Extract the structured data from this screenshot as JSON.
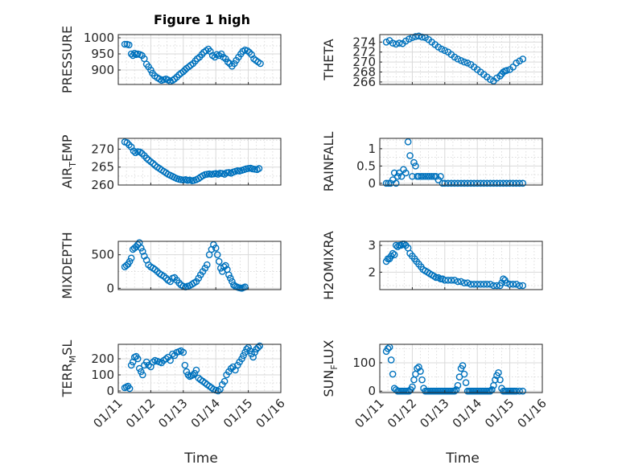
{
  "figure_title": "Figure 1 high",
  "chart_data": [
    {
      "type": "scatter",
      "id": "pressure",
      "ylabel": "PRESSURE",
      "xlim": [
        0,
        5
      ],
      "ylim": [
        855,
        1010
      ],
      "yticks": [
        900,
        950,
        1000
      ],
      "xticklabels": [],
      "title": "Figure 1 high",
      "x": [
        0.2,
        0.27,
        0.33,
        0.4,
        0.45,
        0.5,
        0.55,
        0.6,
        0.67,
        0.73,
        0.8,
        0.87,
        0.93,
        1.0,
        1.05,
        1.12,
        1.2,
        1.27,
        1.33,
        1.4,
        1.47,
        1.53,
        1.6,
        1.67,
        1.73,
        1.8,
        1.87,
        1.93,
        2.0,
        2.05,
        2.1,
        2.17,
        2.23,
        2.3,
        2.37,
        2.43,
        2.5,
        2.57,
        2.63,
        2.7,
        2.77,
        2.83,
        2.9,
        2.97,
        3.03,
        3.1,
        3.17,
        3.23,
        3.3,
        3.37,
        3.43,
        3.5,
        3.57,
        3.63,
        3.7,
        3.77,
        3.83,
        3.9,
        3.97,
        4.03,
        4.1,
        4.17,
        4.23,
        4.3,
        4.37
      ],
      "y": [
        980,
        980,
        978,
        950,
        945,
        952,
        948,
        950,
        948,
        945,
        935,
        918,
        910,
        900,
        890,
        882,
        876,
        872,
        868,
        870,
        872,
        869,
        865,
        868,
        872,
        878,
        885,
        890,
        895,
        900,
        905,
        910,
        915,
        920,
        928,
        935,
        940,
        948,
        955,
        960,
        965,
        958,
        945,
        940,
        948,
        945,
        950,
        940,
        935,
        925,
        920,
        912,
        920,
        930,
        940,
        950,
        958,
        962,
        960,
        955,
        948,
        935,
        930,
        925,
        920
      ]
    },
    {
      "type": "scatter",
      "id": "theta",
      "ylabel": "THETA",
      "xlim": [
        0,
        5
      ],
      "ylim": [
        265.5,
        275.5
      ],
      "yticks": [
        266,
        268,
        270,
        272,
        274
      ],
      "xticklabels": [],
      "x": [
        0.2,
        0.3,
        0.4,
        0.5,
        0.6,
        0.7,
        0.8,
        0.9,
        1.0,
        1.1,
        1.2,
        1.3,
        1.4,
        1.5,
        1.6,
        1.7,
        1.8,
        1.9,
        2.0,
        2.1,
        2.2,
        2.3,
        2.4,
        2.5,
        2.6,
        2.7,
        2.8,
        2.9,
        3.0,
        3.1,
        3.2,
        3.3,
        3.4,
        3.5,
        3.6,
        3.7,
        3.75,
        3.8,
        3.85,
        3.9,
        4.0,
        4.1,
        4.2,
        4.3,
        4.4
      ],
      "y": [
        274,
        274.3,
        273.8,
        273.6,
        273.8,
        273.7,
        274.2,
        274.6,
        274.9,
        275.1,
        275.2,
        275.0,
        274.9,
        274.5,
        274.0,
        273.5,
        273.0,
        272.6,
        272.3,
        272.0,
        271.5,
        271.0,
        270.6,
        270.3,
        270.0,
        269.8,
        269.5,
        269.0,
        268.5,
        268.0,
        267.5,
        267.0,
        266.5,
        266.2,
        266.8,
        267.2,
        267.6,
        268.0,
        268.2,
        268.3,
        268.5,
        269.0,
        269.8,
        270.2,
        270.6
      ]
    },
    {
      "type": "scatter",
      "id": "airtemp",
      "ylabel": "AIR_TEMP",
      "xlim": [
        0,
        5
      ],
      "ylim": [
        260,
        273
      ],
      "yticks": [
        260,
        265,
        270
      ],
      "xticklabels": [],
      "x": [
        0.2,
        0.27,
        0.33,
        0.4,
        0.47,
        0.53,
        0.6,
        0.67,
        0.73,
        0.8,
        0.87,
        0.93,
        1.0,
        1.07,
        1.13,
        1.2,
        1.27,
        1.33,
        1.4,
        1.47,
        1.53,
        1.6,
        1.67,
        1.73,
        1.8,
        1.87,
        1.93,
        2.0,
        2.07,
        2.13,
        2.2,
        2.27,
        2.33,
        2.4,
        2.47,
        2.53,
        2.6,
        2.67,
        2.73,
        2.8,
        2.87,
        2.93,
        3.0,
        3.07,
        3.13,
        3.2,
        3.27,
        3.33,
        3.4,
        3.47,
        3.53,
        3.6,
        3.67,
        3.73,
        3.8,
        3.87,
        3.93,
        4.0,
        4.07,
        4.13,
        4.2,
        4.27,
        4.33
      ],
      "y": [
        272,
        271.8,
        271.2,
        270.6,
        269.5,
        269.0,
        269.3,
        269.2,
        268.8,
        268.2,
        267.5,
        267.0,
        266.5,
        266.0,
        265.5,
        265.0,
        264.6,
        264.2,
        263.8,
        263.4,
        263.0,
        262.7,
        262.4,
        262.1,
        261.8,
        261.6,
        261.5,
        261.4,
        261.5,
        261.3,
        261.4,
        261.2,
        261.3,
        261.5,
        261.8,
        262.2,
        262.6,
        262.9,
        263.0,
        263.1,
        263.0,
        263.1,
        263.2,
        263.0,
        263.3,
        263.2,
        263.0,
        263.4,
        263.5,
        263.3,
        263.6,
        263.8,
        264.0,
        263.9,
        264.1,
        264.3,
        264.5,
        264.6,
        264.7,
        264.5,
        264.4,
        264.3,
        264.6
      ]
    },
    {
      "type": "scatter",
      "id": "rainfall",
      "ylabel": "RAINFALL",
      "xlim": [
        0,
        5
      ],
      "ylim": [
        -0.05,
        1.3
      ],
      "yticks": [
        0,
        0.5,
        1
      ],
      "xticklabels": [],
      "x": [
        0.2,
        0.27,
        0.33,
        0.4,
        0.45,
        0.5,
        0.55,
        0.6,
        0.67,
        0.73,
        0.8,
        0.87,
        0.93,
        1.0,
        1.05,
        1.1,
        1.15,
        1.2,
        1.27,
        1.33,
        1.4,
        1.47,
        1.53,
        1.6,
        1.67,
        1.73,
        1.8,
        1.87,
        1.93,
        2.0,
        2.1,
        2.2,
        2.3,
        2.4,
        2.5,
        2.6,
        2.7,
        2.8,
        2.9,
        3.0,
        3.1,
        3.2,
        3.3,
        3.4,
        3.5,
        3.6,
        3.7,
        3.8,
        3.9,
        4.0,
        4.1,
        4.2,
        4.3,
        4.4
      ],
      "y": [
        0,
        0,
        0,
        0.1,
        0.3,
        0,
        0.2,
        0.3,
        0.2,
        0.4,
        0.3,
        1.2,
        0.8,
        0.2,
        0.6,
        0.5,
        0.2,
        0.2,
        0.2,
        0.2,
        0.2,
        0.2,
        0.2,
        0.2,
        0.2,
        0.2,
        0.1,
        0.2,
        0,
        0,
        0,
        0,
        0,
        0,
        0,
        0,
        0,
        0,
        0,
        0,
        0,
        0,
        0,
        0,
        0,
        0,
        0,
        0,
        0,
        0,
        0,
        0,
        0,
        0
      ]
    },
    {
      "type": "scatter",
      "id": "mixdepth",
      "ylabel": "MIXDEPTH",
      "xlim": [
        0,
        5
      ],
      "ylim": [
        -20,
        700
      ],
      "yticks": [
        0,
        500
      ],
      "xticklabels": [],
      "x": [
        0.2,
        0.25,
        0.3,
        0.35,
        0.4,
        0.45,
        0.5,
        0.55,
        0.6,
        0.65,
        0.7,
        0.75,
        0.8,
        0.87,
        0.93,
        1.0,
        1.07,
        1.13,
        1.2,
        1.27,
        1.33,
        1.4,
        1.47,
        1.53,
        1.6,
        1.67,
        1.73,
        1.8,
        1.87,
        1.93,
        2.0,
        2.07,
        2.13,
        2.2,
        2.27,
        2.33,
        2.4,
        2.47,
        2.53,
        2.6,
        2.67,
        2.73,
        2.8,
        2.87,
        2.93,
        3.0,
        3.05,
        3.1,
        3.15,
        3.2,
        3.25,
        3.3,
        3.35,
        3.4,
        3.45,
        3.5,
        3.55,
        3.6,
        3.65,
        3.7,
        3.75,
        3.8,
        3.85,
        3.9
      ],
      "y": [
        320,
        340,
        360,
        400,
        450,
        580,
        600,
        620,
        650,
        680,
        600,
        550,
        480,
        420,
        350,
        320,
        300,
        280,
        250,
        220,
        200,
        180,
        150,
        120,
        100,
        150,
        160,
        120,
        80,
        50,
        30,
        20,
        30,
        40,
        60,
        80,
        100,
        150,
        200,
        250,
        300,
        350,
        500,
        580,
        650,
        600,
        500,
        400,
        300,
        250,
        320,
        340,
        280,
        200,
        150,
        100,
        50,
        30,
        20,
        10,
        5,
        0,
        10,
        20
      ]
    },
    {
      "type": "scatter",
      "id": "h2omixra",
      "ylabel": "H2OMIXRA",
      "xlim": [
        0,
        5
      ],
      "ylim": [
        1.35,
        3.15
      ],
      "yticks": [
        2,
        3
      ],
      "xticklabels": [],
      "x": [
        0.2,
        0.25,
        0.3,
        0.35,
        0.4,
        0.45,
        0.5,
        0.55,
        0.6,
        0.65,
        0.7,
        0.75,
        0.8,
        0.87,
        0.93,
        1.0,
        1.07,
        1.13,
        1.2,
        1.27,
        1.33,
        1.4,
        1.47,
        1.53,
        1.6,
        1.67,
        1.73,
        1.8,
        1.87,
        1.93,
        2.0,
        2.1,
        2.2,
        2.3,
        2.4,
        2.5,
        2.6,
        2.7,
        2.8,
        2.9,
        3.0,
        3.1,
        3.2,
        3.3,
        3.4,
        3.5,
        3.6,
        3.7,
        3.75,
        3.8,
        3.85,
        3.9,
        4.0,
        4.1,
        4.2,
        4.3,
        4.4
      ],
      "y": [
        2.4,
        2.5,
        2.5,
        2.6,
        2.7,
        2.65,
        3.0,
        2.95,
        3.0,
        3.0,
        3.05,
        3.05,
        3.0,
        2.9,
        2.7,
        2.6,
        2.5,
        2.4,
        2.3,
        2.2,
        2.1,
        2.05,
        2.0,
        1.95,
        1.9,
        1.85,
        1.8,
        1.8,
        1.75,
        1.75,
        1.7,
        1.7,
        1.7,
        1.7,
        1.65,
        1.65,
        1.6,
        1.6,
        1.55,
        1.55,
        1.55,
        1.55,
        1.55,
        1.55,
        1.55,
        1.5,
        1.5,
        1.5,
        1.6,
        1.75,
        1.7,
        1.6,
        1.55,
        1.55,
        1.55,
        1.5,
        1.5
      ]
    },
    {
      "type": "scatter",
      "id": "terrmsl",
      "ylabel": "TERR_MSL",
      "xlim": [
        0,
        5
      ],
      "ylim": [
        -10,
        290
      ],
      "yticks": [
        0,
        100,
        200
      ],
      "xticklabels": [
        "01/11",
        "01/12",
        "01/13",
        "01/14",
        "01/15",
        "01/16"
      ],
      "xlabel": "Time",
      "x": [
        0.2,
        0.25,
        0.3,
        0.35,
        0.4,
        0.45,
        0.5,
        0.55,
        0.6,
        0.65,
        0.7,
        0.75,
        0.8,
        0.87,
        0.93,
        1.0,
        1.07,
        1.13,
        1.2,
        1.27,
        1.33,
        1.4,
        1.47,
        1.53,
        1.6,
        1.67,
        1.73,
        1.8,
        1.87,
        1.93,
        2.0,
        2.05,
        2.1,
        2.15,
        2.2,
        2.25,
        2.3,
        2.35,
        2.4,
        2.47,
        2.53,
        2.6,
        2.67,
        2.73,
        2.8,
        2.87,
        2.93,
        3.0,
        3.07,
        3.13,
        3.2,
        3.27,
        3.33,
        3.4,
        3.47,
        3.53,
        3.6,
        3.67,
        3.73,
        3.8,
        3.85,
        3.9,
        3.95,
        4.0,
        4.05,
        4.1,
        4.15,
        4.2,
        4.25,
        4.3,
        4.35
      ],
      "y": [
        20,
        25,
        30,
        15,
        160,
        180,
        210,
        215,
        200,
        140,
        120,
        100,
        160,
        180,
        160,
        150,
        180,
        190,
        185,
        180,
        175,
        190,
        200,
        210,
        190,
        230,
        220,
        240,
        245,
        250,
        240,
        160,
        120,
        100,
        90,
        95,
        100,
        110,
        130,
        80,
        70,
        60,
        50,
        40,
        30,
        20,
        10,
        5,
        0,
        10,
        40,
        60,
        100,
        120,
        140,
        150,
        130,
        160,
        180,
        200,
        220,
        240,
        260,
        270,
        250,
        230,
        210,
        240,
        260,
        270,
        280
      ]
    },
    {
      "type": "scatter",
      "id": "sunflux",
      "ylabel": "SUN_FLUX",
      "xlim": [
        0,
        5
      ],
      "ylim": [
        -5,
        165
      ],
      "yticks": [
        0,
        100
      ],
      "xticklabels": [
        "01/11",
        "01/12",
        "01/13",
        "01/14",
        "01/15",
        "01/16"
      ],
      "xlabel": "Time",
      "x": [
        0.2,
        0.25,
        0.3,
        0.35,
        0.4,
        0.45,
        0.5,
        0.55,
        0.6,
        0.65,
        0.7,
        0.75,
        0.8,
        0.85,
        0.9,
        0.95,
        1.0,
        1.05,
        1.1,
        1.15,
        1.2,
        1.25,
        1.3,
        1.35,
        1.4,
        1.45,
        1.5,
        1.55,
        1.6,
        1.65,
        1.7,
        1.75,
        1.8,
        1.85,
        1.9,
        1.95,
        2.0,
        2.05,
        2.1,
        2.15,
        2.2,
        2.25,
        2.3,
        2.35,
        2.4,
        2.45,
        2.5,
        2.55,
        2.6,
        2.65,
        2.7,
        2.75,
        2.8,
        2.85,
        2.9,
        2.95,
        3.0,
        3.05,
        3.1,
        3.15,
        3.2,
        3.25,
        3.3,
        3.35,
        3.4,
        3.45,
        3.5,
        3.55,
        3.6,
        3.65,
        3.7,
        3.75,
        3.8,
        3.85,
        3.9,
        3.95,
        4.0,
        4.05,
        4.1,
        4.15,
        4.2,
        4.3,
        4.4
      ],
      "y": [
        140,
        150,
        155,
        110,
        60,
        10,
        5,
        0,
        0,
        0,
        0,
        0,
        0,
        0,
        0,
        5,
        15,
        40,
        60,
        80,
        85,
        70,
        40,
        10,
        0,
        0,
        0,
        0,
        0,
        0,
        0,
        0,
        0,
        0,
        0,
        0,
        0,
        0,
        0,
        0,
        0,
        0,
        0,
        5,
        20,
        50,
        80,
        90,
        60,
        30,
        0,
        0,
        0,
        0,
        0,
        0,
        0,
        0,
        0,
        0,
        0,
        0,
        0,
        0,
        0,
        5,
        20,
        40,
        55,
        65,
        40,
        10,
        0,
        0,
        0,
        0,
        0,
        0,
        0,
        0,
        0,
        0,
        0
      ]
    }
  ]
}
